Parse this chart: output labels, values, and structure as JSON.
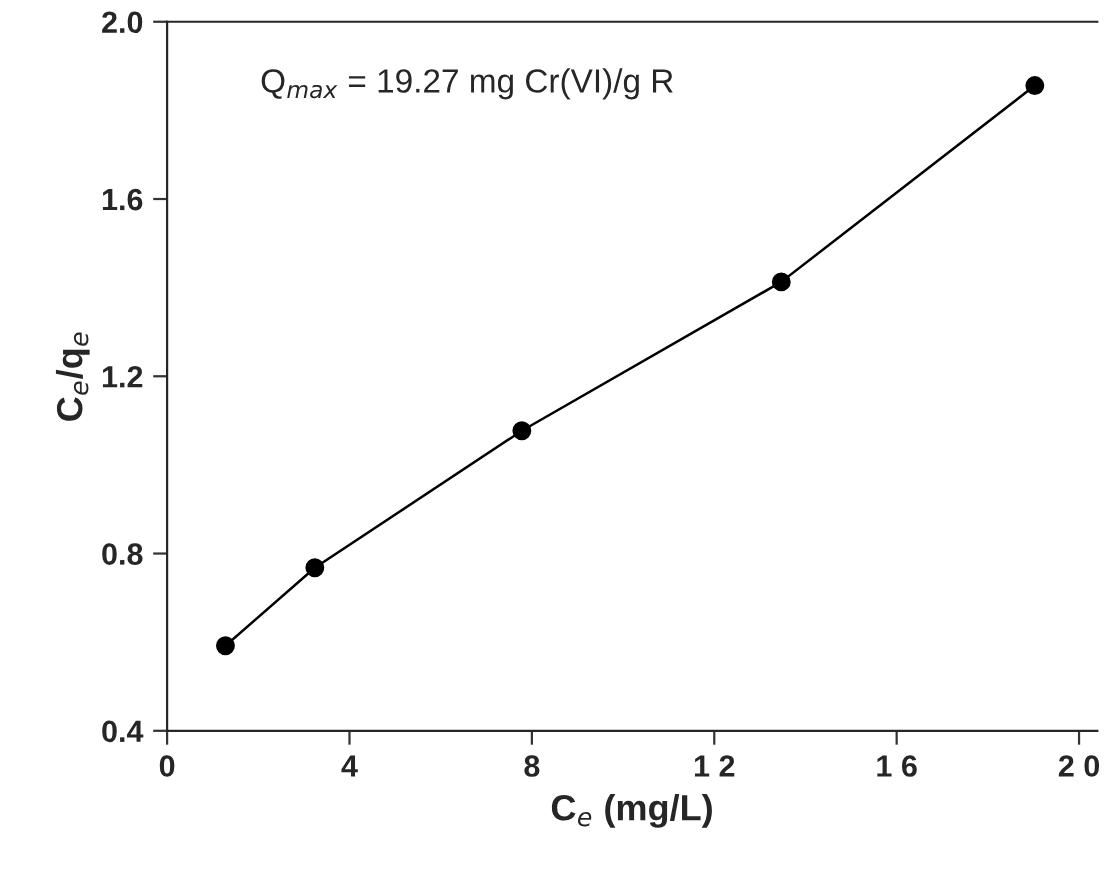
{
  "chart_data": {
    "type": "line",
    "xlabel": "C$_{e}$ (mg/L)",
    "ylabel": "C$_{e}$/q$_{e}$",
    "annotations": [
      "Q$_{max}$ = 19.27 mg Cr(VI)/g R"
    ],
    "series": [
      {
        "color": "#000000",
        "x": [
          1.28,
          3.24,
          7.78,
          13.47,
          19.03
        ],
        "values": [
          0.592,
          0.768,
          1.077,
          1.413,
          1.856
        ]
      }
    ],
    "marker": "circle",
    "line_style": "solid",
    "grid": false,
    "legend": false,
    "xlim": [
      0,
      20.4
    ],
    "ylim": [
      0.4,
      2.0
    ],
    "xticks": [
      0,
      4,
      8,
      {
        "value": 12,
        "label": "1 2"
      },
      {
        "value": 16,
        "label": "1 6"
      },
      {
        "value": 20,
        "label": "2 0"
      }
    ],
    "yticks": [
      0.4,
      0.8,
      1.2,
      1.6,
      {
        "value": 2.0,
        "label": "2.0"
      }
    ]
  }
}
